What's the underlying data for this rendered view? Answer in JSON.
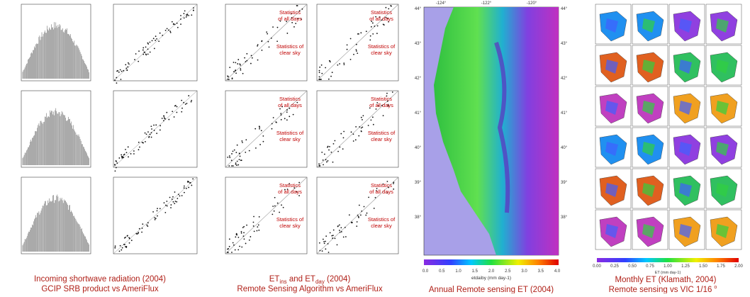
{
  "radiation": {
    "caption": [
      "Incoming shortwave radiation (2004)",
      "GCIP SRB product vs AmeriFlux"
    ]
  },
  "et": {
    "caption_parts": {
      "a": "ET",
      "a_sub": "ins",
      "mid": " and ",
      "b": "ET",
      "b_sub": "day",
      "tail": " (2004)"
    },
    "caption2": "Remote Sensing Algorithm vs AmeriFlux",
    "plots": [
      {
        "all_days": [
          "Statistics",
          "of all days"
        ],
        "clear_sky": [
          "Statistics of",
          "clear sky"
        ]
      },
      {
        "all_days": [
          "Statistics",
          "of all days"
        ],
        "clear_sky": [
          "Statistics of",
          "clear sky"
        ]
      },
      {
        "all_days": [
          "Statistics",
          "of all days"
        ],
        "clear_sky": [
          "Statistics of",
          "clear sky"
        ]
      },
      {
        "all_days": [
          "Statistics",
          "of all days"
        ],
        "clear_sky": [
          "Statistics of",
          "clear sky"
        ]
      },
      {
        "all_days": [
          "Statistics",
          "of all days"
        ],
        "clear_sky": [
          "Statistics of",
          "clear sky"
        ]
      },
      {
        "all_days": [
          "Statistics",
          "of all days"
        ],
        "clear_sky": [
          "Statistics of",
          "clear sky"
        ]
      }
    ]
  },
  "map": {
    "caption": "Annual Remote sensing ET (2004)",
    "lon_labels": [
      "-124°",
      "-122°",
      "-120°"
    ],
    "lat_labels": [
      "44°",
      "43°",
      "42°",
      "41°",
      "40°",
      "39°",
      "38°"
    ],
    "colorbar_ticks": [
      "0.0",
      "0.5",
      "1.0",
      "1.5",
      "2.0",
      "2.5",
      "3.0",
      "3.5",
      "4.0"
    ],
    "colorbar_label": "etdaiby (mm day-1)"
  },
  "monthly": {
    "caption": [
      "Monthly ET (Klamath, 2004)",
      "Remote sensing vs VIC 1/16"
    ],
    "degree": "o",
    "colorbar_ticks": [
      "0.00",
      "0.25",
      "0.50",
      "0.75",
      "1.00",
      "1.25",
      "1.50",
      "1.75",
      "2.00"
    ],
    "colorbar_label": "ET (mm day-1)"
  }
}
